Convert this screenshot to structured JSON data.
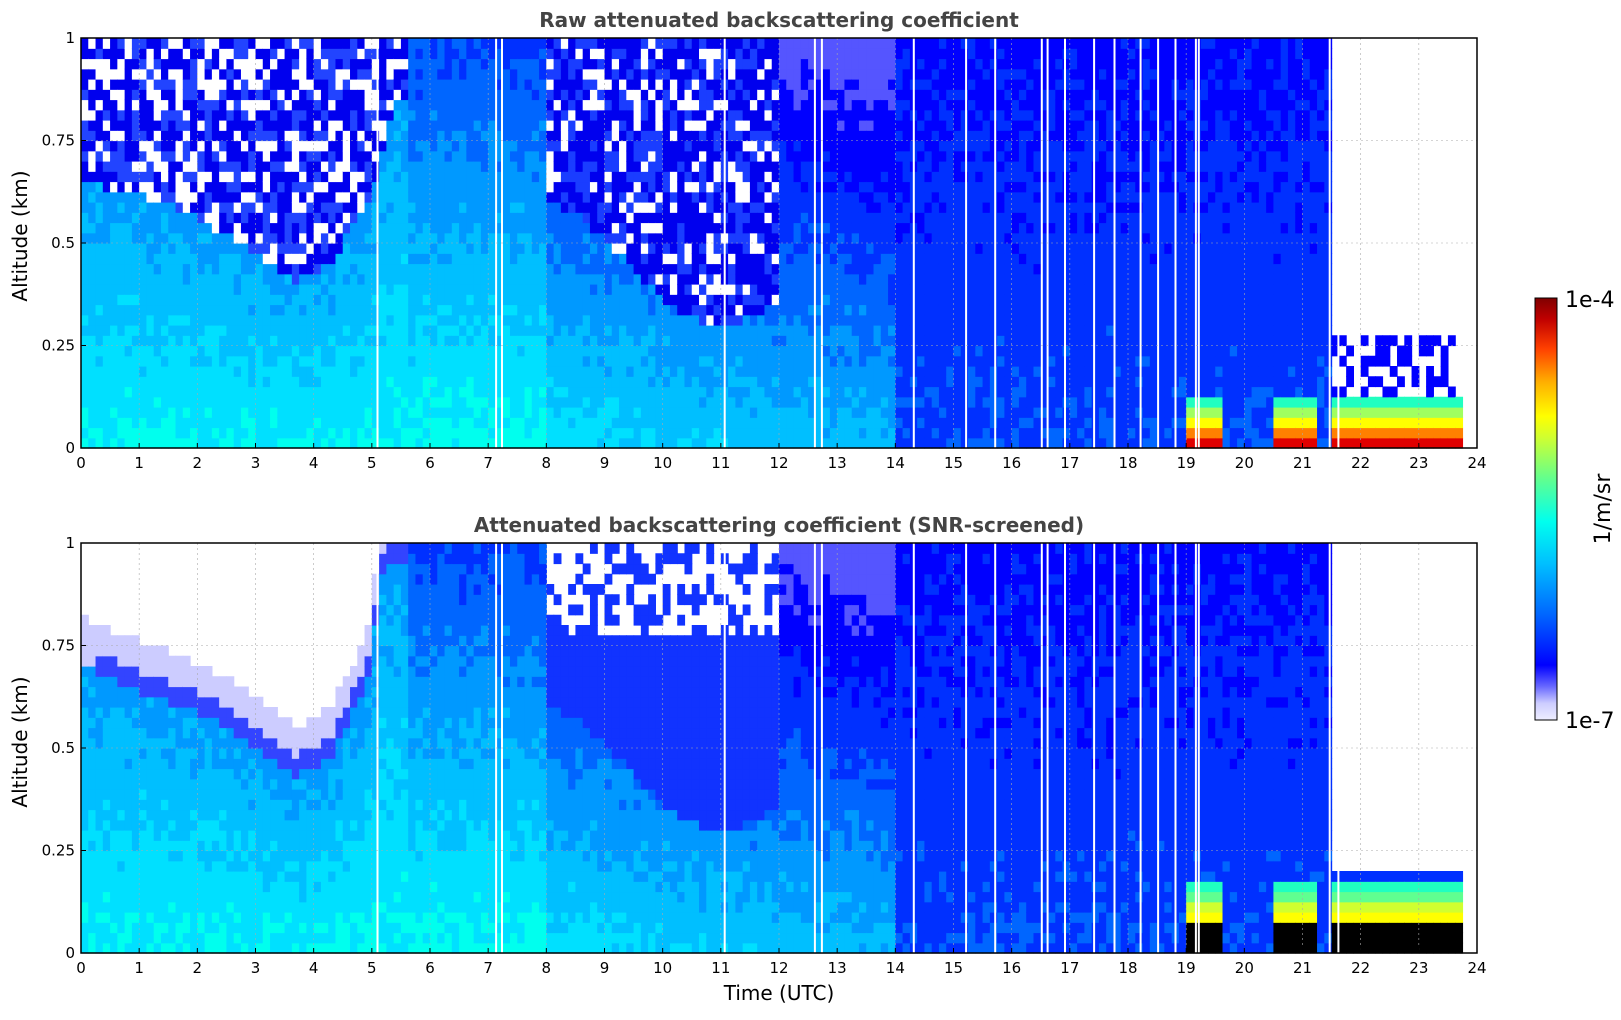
{
  "chart_data": [
    {
      "type": "heatmap",
      "title": "Raw attenuated backscattering coefficient",
      "xlabel": "",
      "ylabel": "Altitude (km)",
      "xlim": [
        0,
        24
      ],
      "ylim": [
        0,
        1
      ],
      "xticks": [
        "0",
        "1",
        "2",
        "3",
        "4",
        "5",
        "6",
        "7",
        "8",
        "9",
        "10",
        "11",
        "12",
        "13",
        "14",
        "15",
        "16",
        "17",
        "18",
        "19",
        "20",
        "21",
        "22",
        "23",
        "24"
      ],
      "yticks": [
        "0",
        "0.25",
        "0.5",
        "0.75",
        "1"
      ],
      "grid": true,
      "colorscale": "jet (log)",
      "cloud_top_km": [
        {
          "t": 0,
          "z": 0.65
        },
        {
          "t": 1,
          "z": 0.62
        },
        {
          "t": 1.8,
          "z": 0.58
        },
        {
          "t": 2.5,
          "z": 0.52
        },
        {
          "t": 3.4,
          "z": 0.44
        },
        {
          "t": 3.7,
          "z": 0.41
        },
        {
          "t": 4.3,
          "z": 0.45
        },
        {
          "t": 5.0,
          "z": 0.62
        },
        {
          "t": 5.4,
          "z": 0.85
        }
      ],
      "fog_layer": {
        "start": 19.0,
        "end": 23.8,
        "top_km": 0.12
      },
      "white_gaps_utc": [
        5.08,
        7.12,
        7.22,
        11.05,
        12.6,
        12.72,
        14.3,
        15.2,
        15.7,
        16.5,
        16.6,
        16.9,
        17.4,
        17.75,
        18.2,
        18.5,
        18.8,
        19.15,
        19.2,
        21.45,
        21.6
      ]
    },
    {
      "type": "heatmap",
      "title": "Attenuated backscattering coefficient (SNR-screened)",
      "xlabel": "Time (UTC)",
      "ylabel": "Altitude (km)",
      "xlim": [
        0,
        24
      ],
      "ylim": [
        0,
        1
      ],
      "xticks": [
        "0",
        "1",
        "2",
        "3",
        "4",
        "5",
        "6",
        "7",
        "8",
        "9",
        "10",
        "11",
        "12",
        "13",
        "14",
        "15",
        "16",
        "17",
        "18",
        "19",
        "20",
        "21",
        "22",
        "23",
        "24"
      ],
      "yticks": [
        "0",
        "0.25",
        "0.5",
        "0.75",
        "1"
      ],
      "grid": true,
      "colorscale": "jet (log)",
      "cloud_top_km": [
        {
          "t": 0,
          "z": 0.7
        },
        {
          "t": 1,
          "z": 0.64
        },
        {
          "t": 1.8,
          "z": 0.6
        },
        {
          "t": 2.5,
          "z": 0.55
        },
        {
          "t": 3.4,
          "z": 0.46
        },
        {
          "t": 3.7,
          "z": 0.43
        },
        {
          "t": 4.3,
          "z": 0.48
        },
        {
          "t": 4.9,
          "z": 0.65
        },
        {
          "t": 5.2,
          "z": 0.95
        }
      ],
      "fog_layer": {
        "start": 19.0,
        "end": 23.8,
        "top_km": 0.17
      },
      "white_gaps_utc": [
        5.08,
        7.12,
        7.22,
        11.05,
        12.6,
        12.72,
        14.3,
        15.2,
        15.7,
        16.5,
        16.6,
        16.9,
        17.4,
        17.75,
        18.2,
        18.5,
        18.8,
        19.15,
        19.2,
        21.45,
        21.6
      ]
    }
  ],
  "colorbar": {
    "max_label": "1e-4",
    "min_label": "1e-7",
    "unit_label": "1/m/sr",
    "colors": [
      "#eeeeff",
      "#ccccff",
      "#9999ff",
      "#5555ff",
      "#0000ff",
      "#0030ff",
      "#0066ff",
      "#0099ff",
      "#00bfff",
      "#00e0ff",
      "#00ffee",
      "#20ffc0",
      "#60ff90",
      "#a0ff60",
      "#d0ff30",
      "#ffff00",
      "#ffc000",
      "#ff8000",
      "#ff4000",
      "#e00000",
      "#a00000",
      "#800000"
    ]
  }
}
